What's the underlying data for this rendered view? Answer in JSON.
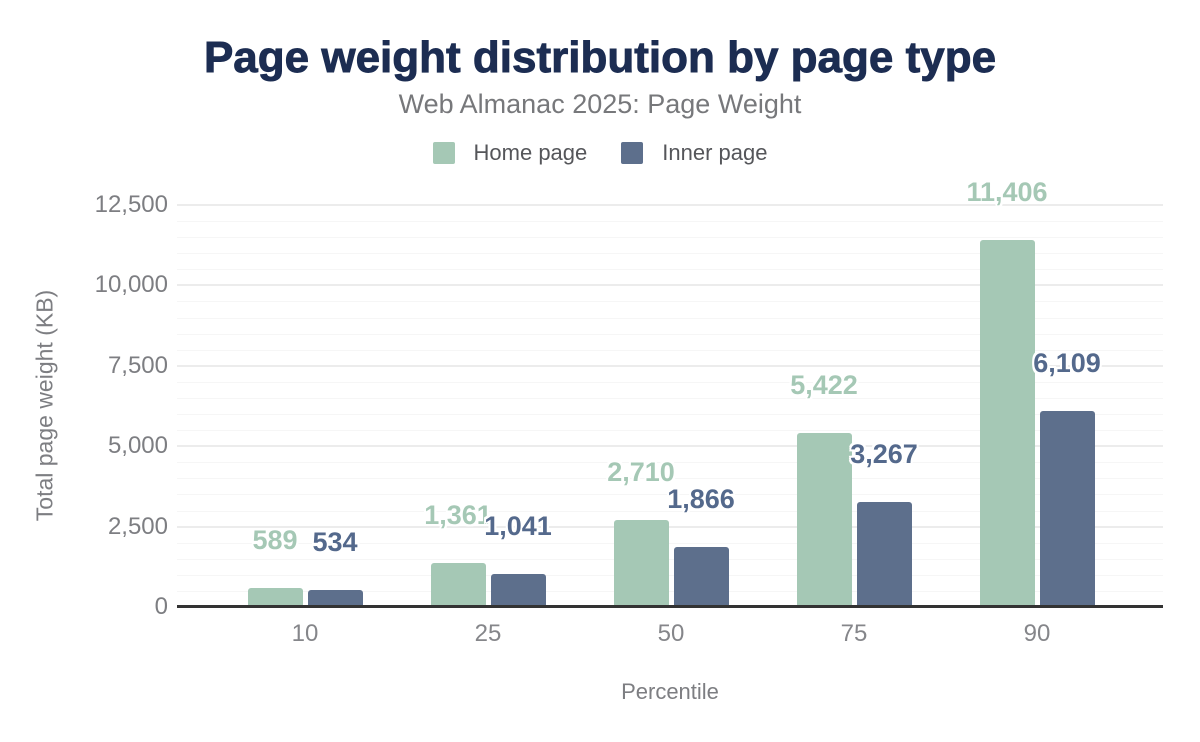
{
  "header": {
    "title": "Page weight distribution by page type",
    "subtitle": "Web Almanac 2025: Page Weight"
  },
  "chart_data": {
    "type": "bar",
    "title": "Page weight distribution by page type",
    "subtitle": "Web Almanac 2025: Page Weight",
    "xlabel": "Percentile",
    "ylabel": "Total page weight (KB)",
    "categories": [
      "10",
      "25",
      "50",
      "75",
      "90"
    ],
    "series": [
      {
        "name": "Home page",
        "color": "#a5c8b5",
        "label_color": "#a5c8b5",
        "values": [
          589,
          1361,
          2710,
          5422,
          11406
        ],
        "labels": [
          "589",
          "1,361",
          "2,710",
          "5,422",
          "11,406"
        ]
      },
      {
        "name": "Inner page",
        "color": "#5d6f8c",
        "label_color": "#54698c",
        "values": [
          534,
          1041,
          1866,
          3267,
          6109
        ],
        "labels": [
          "534",
          "1,041",
          "1,866",
          "3,267",
          "6,109"
        ]
      }
    ],
    "ylim": [
      0,
      12500
    ],
    "yticks": [
      {
        "value": 0,
        "label": "0"
      },
      {
        "value": 2500,
        "label": "2,500"
      },
      {
        "value": 5000,
        "label": "5,000"
      },
      {
        "value": 7500,
        "label": "7,500"
      },
      {
        "value": 10000,
        "label": "10,000"
      },
      {
        "value": 12500,
        "label": "12,500"
      }
    ],
    "grid": {
      "minor_step": 500,
      "major_step": 2500,
      "horizontal": true
    },
    "legend_position": "top-center",
    "colors": {
      "title": "#1c2d52",
      "subtitle": "#77787b",
      "legend_text": "#55565a",
      "axis_text": "#7d7e82",
      "axis_line": "#333333",
      "grid_minor": "#f6f6f6",
      "grid_major": "#ececec",
      "background": "#ffffff"
    }
  }
}
